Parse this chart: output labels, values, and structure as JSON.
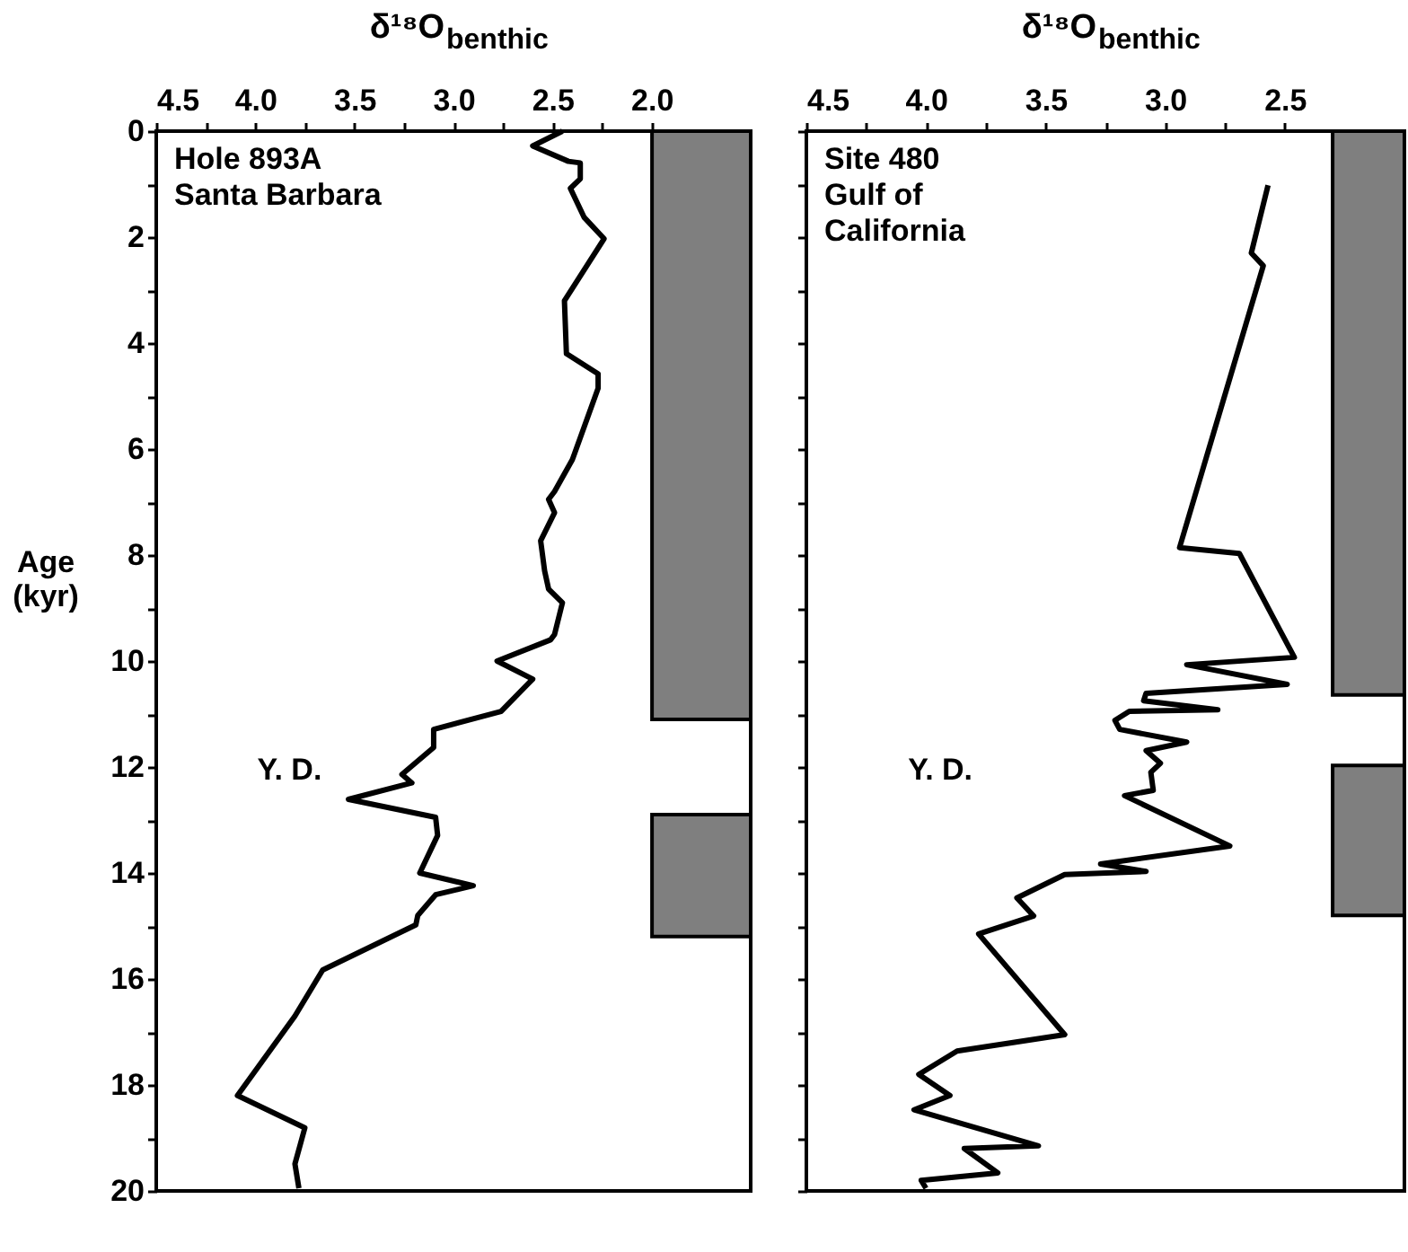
{
  "chart_data": [
    {
      "type": "line",
      "xlabel": "δ¹⁸O$_{benthic}$",
      "ylabel": "Age\n(kyr)",
      "color": "#000000",
      "x": [
        2.45,
        2.6,
        2.42,
        2.36,
        2.36,
        2.41,
        2.34,
        2.24,
        2.44,
        2.43,
        2.27,
        2.27,
        2.4,
        2.49,
        2.52,
        2.49,
        2.56,
        2.54,
        2.52,
        2.45,
        2.49,
        2.51,
        2.78,
        2.6,
        2.76,
        3.1,
        3.1,
        3.26,
        3.21,
        3.53,
        3.09,
        3.08,
        3.17,
        2.9,
        3.09,
        3.18,
        3.19,
        3.66,
        3.8,
        4.09,
        3.75,
        3.8,
        3.78
      ],
      "values": [
        0,
        0.28,
        0.57,
        0.6,
        0.9,
        1.08,
        1.63,
        2.03,
        3.2,
        4.2,
        4.58,
        4.85,
        6.2,
        6.8,
        6.95,
        7.2,
        7.73,
        8.3,
        8.64,
        8.9,
        9.5,
        9.6,
        10.0,
        10.34,
        10.95,
        11.29,
        11.63,
        12.14,
        12.3,
        12.61,
        12.95,
        13.29,
        14.0,
        14.24,
        14.41,
        14.8,
        14.98,
        15.83,
        16.7,
        18.2,
        18.81,
        19.49,
        19.95
      ],
      "xlim": [
        4.5,
        1.5
      ],
      "ylim": [
        20,
        0
      ],
      "xticks": [
        {
          "value": 4.5,
          "label": "4.5"
        },
        {
          "value": 4.25,
          "label": null
        },
        {
          "value": 4.0,
          "label": "4.0"
        },
        {
          "value": 3.75,
          "label": null
        },
        {
          "value": 3.5,
          "label": "3.5"
        },
        {
          "value": 3.25,
          "label": null
        },
        {
          "value": 3.0,
          "label": "3.0"
        },
        {
          "value": 2.75,
          "label": null
        },
        {
          "value": 2.5,
          "label": "2.5"
        },
        {
          "value": 2.25,
          "label": null
        },
        {
          "value": 2.0,
          "label": "2.0"
        }
      ],
      "yticks": [
        0,
        {
          "value": 1,
          "label": null
        },
        2,
        {
          "value": 3,
          "label": null
        },
        4,
        {
          "value": 5,
          "label": null
        },
        6,
        {
          "value": 7,
          "label": null
        },
        8,
        {
          "value": 9,
          "label": null
        },
        10,
        {
          "value": 11,
          "label": null
        },
        12,
        {
          "value": 13,
          "label": null
        },
        14,
        {
          "value": 15,
          "label": null
        },
        16,
        {
          "value": 17,
          "label": null
        },
        18,
        {
          "value": 19,
          "label": null
        },
        20
      ],
      "bands": [
        {
          "axis": "y",
          "from": 0,
          "to": 11.1,
          "color": "#7f7f7f"
        },
        {
          "axis": "y",
          "from": 12.9,
          "to": 15.2,
          "color": "#7f7f7f"
        }
      ],
      "annotations": [
        "Hole 893A\nSanta Barbara",
        "Y. D."
      ]
    },
    {
      "type": "line",
      "xlabel": "δ¹⁸O$_{benthic}$",
      "color": "#000000",
      "tick_labels": "x",
      "x": [
        2.57,
        2.64,
        2.59,
        2.94,
        2.69,
        2.52,
        2.46,
        2.91,
        2.49,
        3.08,
        3.09,
        2.78,
        3.15,
        3.21,
        3.19,
        2.91,
        3.08,
        3.02,
        3.06,
        3.05,
        3.17,
        2.73,
        3.27,
        3.08,
        3.42,
        3.62,
        3.55,
        3.78,
        3.42,
        3.87,
        4.03,
        3.9,
        4.05,
        3.53,
        3.84,
        3.7,
        4.02,
        4.0
      ],
      "values": [
        1.02,
        2.3,
        2.54,
        7.86,
        7.97,
        9.42,
        9.93,
        10.07,
        10.44,
        10.61,
        10.75,
        10.92,
        10.95,
        11.12,
        11.29,
        11.53,
        11.69,
        11.93,
        12.1,
        12.44,
        12.54,
        13.49,
        13.83,
        13.97,
        14.03,
        14.47,
        14.81,
        15.15,
        17.05,
        17.36,
        17.8,
        18.2,
        18.47,
        19.15,
        19.2,
        19.66,
        19.8,
        19.95
      ],
      "xlim": [
        4.5,
        2.0
      ],
      "ylim": [
        20,
        0
      ],
      "xticks": [
        {
          "value": 4.5,
          "label": "4.5"
        },
        {
          "value": 4.25,
          "label": null
        },
        {
          "value": 4.0,
          "label": "4.0"
        },
        {
          "value": 3.75,
          "label": null
        },
        {
          "value": 3.5,
          "label": "3.5"
        },
        {
          "value": 3.25,
          "label": null
        },
        {
          "value": 3.0,
          "label": "3.0"
        },
        {
          "value": 2.75,
          "label": null
        },
        {
          "value": 2.5,
          "label": "2.5"
        }
      ],
      "yticks": [
        0,
        {
          "value": 1,
          "label": null
        },
        2,
        {
          "value": 3,
          "label": null
        },
        4,
        {
          "value": 5,
          "label": null
        },
        6,
        {
          "value": 7,
          "label": null
        },
        8,
        {
          "value": 9,
          "label": null
        },
        10,
        {
          "value": 11,
          "label": null
        },
        12,
        {
          "value": 13,
          "label": null
        },
        14,
        {
          "value": 15,
          "label": null
        },
        16,
        {
          "value": 17,
          "label": null
        },
        18,
        {
          "value": 19,
          "label": null
        },
        20
      ],
      "bands": [
        {
          "axis": "y",
          "from": 0,
          "to": 10.64,
          "color": "#7f7f7f"
        },
        {
          "axis": "y",
          "from": 11.97,
          "to": 14.8,
          "color": "#7f7f7f"
        }
      ],
      "annotations": [
        "Site 480\nGulf of\nCalifornia",
        "Y. D."
      ]
    }
  ]
}
